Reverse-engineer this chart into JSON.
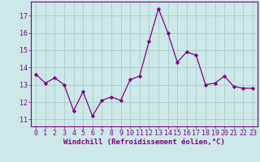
{
  "x": [
    0,
    1,
    2,
    3,
    4,
    5,
    6,
    7,
    8,
    9,
    10,
    11,
    12,
    13,
    14,
    15,
    16,
    17,
    18,
    19,
    20,
    21,
    22,
    23
  ],
  "y": [
    13.6,
    13.1,
    13.4,
    13.0,
    11.5,
    12.6,
    11.2,
    12.1,
    12.3,
    12.1,
    13.3,
    13.5,
    15.5,
    17.4,
    16.0,
    14.3,
    14.9,
    14.7,
    13.0,
    13.1,
    13.5,
    12.9,
    12.8,
    12.8
  ],
  "line_color": "#800080",
  "marker": "D",
  "marker_size": 2.2,
  "bg_color": "#cce8e8",
  "grid_color": "#aacccc",
  "xlabel": "Windchill (Refroidissement éolien,°C)",
  "xlabel_fontsize": 6.5,
  "tick_color": "#800080",
  "tick_fontsize": 6.0,
  "ylim": [
    10.6,
    17.8
  ],
  "yticks": [
    11,
    12,
    13,
    14,
    15,
    16,
    17
  ],
  "xlim": [
    -0.5,
    23.5
  ],
  "xticks": [
    0,
    1,
    2,
    3,
    4,
    5,
    6,
    7,
    8,
    9,
    10,
    11,
    12,
    13,
    14,
    15,
    16,
    17,
    18,
    19,
    20,
    21,
    22,
    23
  ],
  "spine_color": "#800080",
  "linewidth": 0.9
}
